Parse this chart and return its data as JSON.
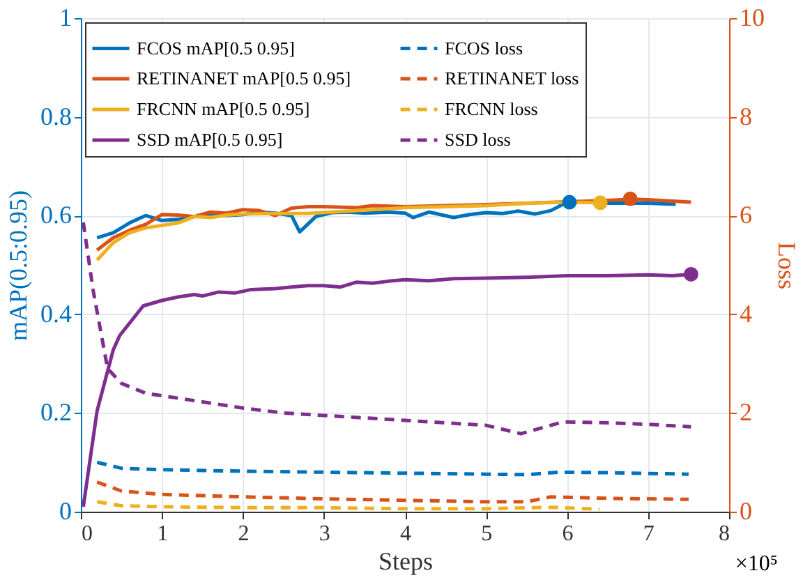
{
  "chart_data": {
    "type": "line",
    "xlabel": "Steps",
    "ylabel": "mAP(0.5:0.95)",
    "y2label": "Loss",
    "annotations": [
      "×10⁵"
    ],
    "xlim": [
      0,
      8
    ],
    "xticks": [
      0,
      1,
      2,
      3,
      4,
      5,
      6,
      7,
      8
    ],
    "ylim": [
      0,
      1
    ],
    "yticks": [
      0,
      0.2,
      0.4,
      0.6,
      0.8,
      1
    ],
    "y2lim": [
      0,
      10
    ],
    "y2ticks": [
      0,
      2,
      4,
      6,
      8,
      10
    ],
    "grid": true,
    "legend": "top left",
    "series": [
      {
        "name": "FCOS mAP[0.5 0.95]",
        "color": "#0072bd",
        "line_style": "solid",
        "x": [
          0.2,
          0.4,
          0.6,
          0.8,
          1.0,
          1.2,
          1.4,
          1.6,
          1.8,
          2.0,
          2.2,
          2.4,
          2.6,
          2.7,
          2.9,
          3.1,
          3.3,
          3.5,
          3.8,
          4.0,
          4.1,
          4.3,
          4.6,
          4.8,
          5.0,
          5.2,
          5.4,
          5.6,
          5.8,
          6.0,
          6.2,
          6.5,
          7.0,
          7.34
        ],
        "values": [
          0.555,
          0.565,
          0.585,
          0.6,
          0.59,
          0.592,
          0.598,
          0.603,
          0.6,
          0.602,
          0.607,
          0.605,
          0.6,
          0.567,
          0.598,
          0.606,
          0.607,
          0.605,
          0.607,
          0.605,
          0.596,
          0.607,
          0.596,
          0.602,
          0.606,
          0.604,
          0.609,
          0.603,
          0.61,
          0.627,
          0.628,
          0.625,
          0.625,
          0.623
        ]
      },
      {
        "name": "RETINANET mAP[0.5 0.95]",
        "color": "#d95319",
        "line_style": "solid",
        "x": [
          0.2,
          0.4,
          0.6,
          0.8,
          1.0,
          1.2,
          1.4,
          1.6,
          1.8,
          2.0,
          2.2,
          2.4,
          2.6,
          2.8,
          3.0,
          3.4,
          3.6,
          4.0,
          4.5,
          5.0,
          5.5,
          6.0,
          6.4,
          6.8,
          7.0,
          7.53
        ],
        "values": [
          0.53,
          0.555,
          0.57,
          0.582,
          0.602,
          0.601,
          0.598,
          0.607,
          0.605,
          0.612,
          0.61,
          0.6,
          0.615,
          0.618,
          0.618,
          0.616,
          0.62,
          0.618,
          0.62,
          0.622,
          0.625,
          0.628,
          0.63,
          0.633,
          0.632,
          0.627
        ]
      },
      {
        "name": "FRCNN mAP[0.5 0.95]",
        "color": "#edb120",
        "line_style": "solid",
        "x": [
          0.2,
          0.4,
          0.6,
          0.8,
          1.0,
          1.2,
          1.4,
          1.6,
          1.8,
          2.0,
          2.4,
          2.8,
          3.2,
          3.6,
          4.0,
          4.5,
          5.0,
          5.5,
          6.0,
          6.41
        ],
        "values": [
          0.51,
          0.545,
          0.565,
          0.575,
          0.58,
          0.585,
          0.598,
          0.596,
          0.601,
          0.603,
          0.604,
          0.604,
          0.608,
          0.612,
          0.616,
          0.618,
          0.62,
          0.625,
          0.627,
          0.626
        ]
      },
      {
        "name": "SSD mAP[0.5 0.95]",
        "color": "#7e2f8e",
        "line_style": "solid",
        "x": [
          0.03,
          0.2,
          0.4,
          0.48,
          0.77,
          1.0,
          1.2,
          1.4,
          1.5,
          1.7,
          1.9,
          2.1,
          2.4,
          2.6,
          2.8,
          3.0,
          3.2,
          3.4,
          3.6,
          3.8,
          4.0,
          4.3,
          4.6,
          5.0,
          5.5,
          6.0,
          6.5,
          7.0,
          7.3,
          7.53
        ],
        "values": [
          0.01,
          0.204,
          0.328,
          0.357,
          0.417,
          0.428,
          0.435,
          0.44,
          0.437,
          0.445,
          0.443,
          0.45,
          0.452,
          0.455,
          0.458,
          0.458,
          0.455,
          0.465,
          0.463,
          0.467,
          0.47,
          0.468,
          0.472,
          0.473,
          0.475,
          0.478,
          0.478,
          0.48,
          0.478,
          0.481
        ]
      },
      {
        "name": "FCOS loss",
        "color": "#0072bd",
        "line_style": "dashed",
        "axis": "y2",
        "x": [
          0.2,
          0.5,
          1.0,
          2.0,
          3.0,
          4.0,
          5.0,
          5.5,
          5.9,
          6.5,
          7.5
        ],
        "values": [
          1.0,
          0.88,
          0.85,
          0.82,
          0.8,
          0.78,
          0.76,
          0.75,
          0.8,
          0.79,
          0.76
        ]
      },
      {
        "name": "RETINANET loss",
        "color": "#d95319",
        "line_style": "dashed",
        "axis": "y2",
        "x": [
          0.2,
          0.5,
          1.0,
          2.0,
          3.0,
          4.0,
          5.0,
          5.5,
          5.8,
          6.5,
          7.5
        ],
        "values": [
          0.6,
          0.42,
          0.35,
          0.3,
          0.26,
          0.23,
          0.2,
          0.2,
          0.3,
          0.27,
          0.25
        ]
      },
      {
        "name": "FRCNN loss",
        "color": "#edb120",
        "line_style": "dashed",
        "axis": "y2",
        "x": [
          0.2,
          0.5,
          1.0,
          2.0,
          3.0,
          4.0,
          5.0,
          5.8,
          6.4
        ],
        "values": [
          0.2,
          0.12,
          0.1,
          0.08,
          0.08,
          0.06,
          0.06,
          0.09,
          0.05
        ]
      },
      {
        "name": "SSD loss",
        "color": "#7e2f8e",
        "line_style": "dashed",
        "axis": "y2",
        "x": [
          0.03,
          0.15,
          0.33,
          0.5,
          0.8,
          1.2,
          1.6,
          2.0,
          2.5,
          3.0,
          3.5,
          4.0,
          4.5,
          5.0,
          5.43,
          5.95,
          6.5,
          7.0,
          7.53
        ],
        "values": [
          5.86,
          4.5,
          2.9,
          2.6,
          2.4,
          2.3,
          2.2,
          2.1,
          2.0,
          1.95,
          1.9,
          1.85,
          1.8,
          1.75,
          1.58,
          1.82,
          1.8,
          1.77,
          1.72
        ]
      },
      {
        "type": "scatter",
        "marker": "circle",
        "color": "#0072bd",
        "x": [
          6.03
        ],
        "values": [
          0.627
        ]
      },
      {
        "type": "scatter",
        "marker": "circle",
        "color": "#edb120",
        "x": [
          6.41
        ],
        "values": [
          0.626
        ]
      },
      {
        "type": "scatter",
        "marker": "circle",
        "color": "#d95319",
        "x": [
          6.78
        ],
        "values": [
          0.634
        ]
      },
      {
        "type": "scatter",
        "marker": "circle",
        "color": "#7e2f8e",
        "x": [
          7.53
        ],
        "values": [
          0.481
        ]
      }
    ]
  }
}
